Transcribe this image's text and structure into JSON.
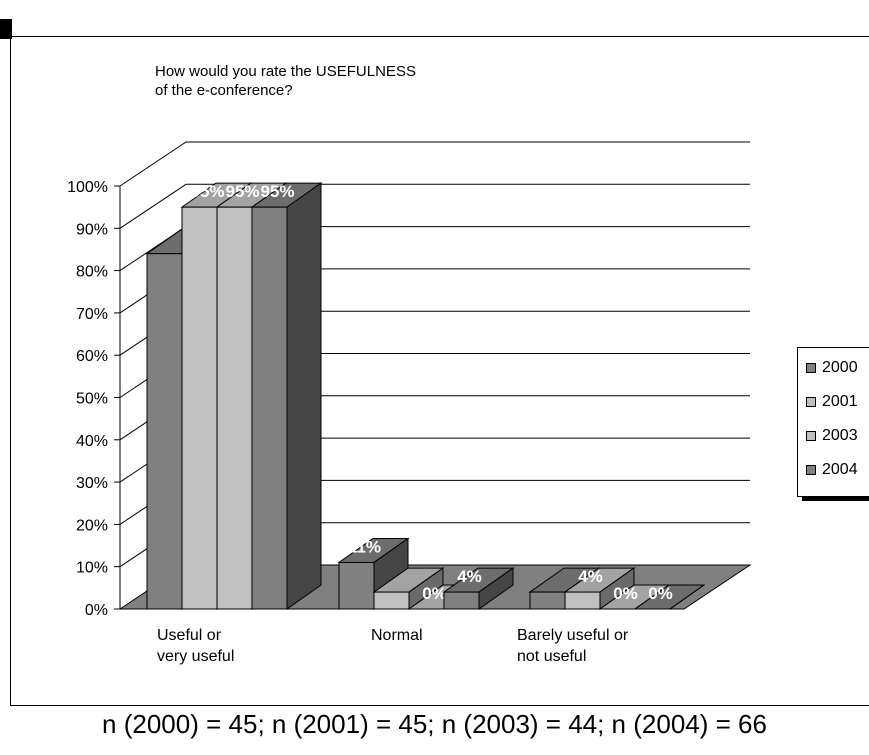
{
  "chart_data": {
    "type": "bar",
    "title": "How would you rate the USEFULNESS\nof the e-conference?",
    "categories": [
      "Useful or\nvery useful",
      "Normal",
      "Barely useful or\nnot useful"
    ],
    "series": [
      {
        "name": "2000",
        "values": [
          84,
          11,
          4
        ],
        "labels": [
          "",
          "11%",
          ""
        ],
        "color": "#808080"
      },
      {
        "name": "2001",
        "values": [
          95,
          4,
          4
        ],
        "labels": [
          "95%",
          "",
          "4%"
        ],
        "color": "#c0c0c0"
      },
      {
        "name": "2003",
        "values": [
          95,
          0,
          0
        ],
        "labels": [
          "95%",
          "0%",
          "0%"
        ],
        "color": "#c0c0c0"
      },
      {
        "name": "2004",
        "values": [
          95,
          4,
          0
        ],
        "labels": [
          "95%",
          "4%",
          "0%"
        ],
        "color": "#808080"
      }
    ],
    "y_ticks": [
      "0%",
      "10%",
      "20%",
      "30%",
      "40%",
      "50%",
      "60%",
      "70%",
      "80%",
      "90%",
      "100%"
    ],
    "ylim": [
      0,
      100
    ],
    "grid": true,
    "legend": "right",
    "note": "n (2000) = 45; n (2001) = 45; n (2003) = 44; n (2004) = 66"
  },
  "colors": {
    "s2000": "#808080",
    "s2001": "#c0c0c0",
    "s2003": "#c0c0c0",
    "s2004": "#808080",
    "floor": "#808080",
    "grid": "#000000"
  }
}
